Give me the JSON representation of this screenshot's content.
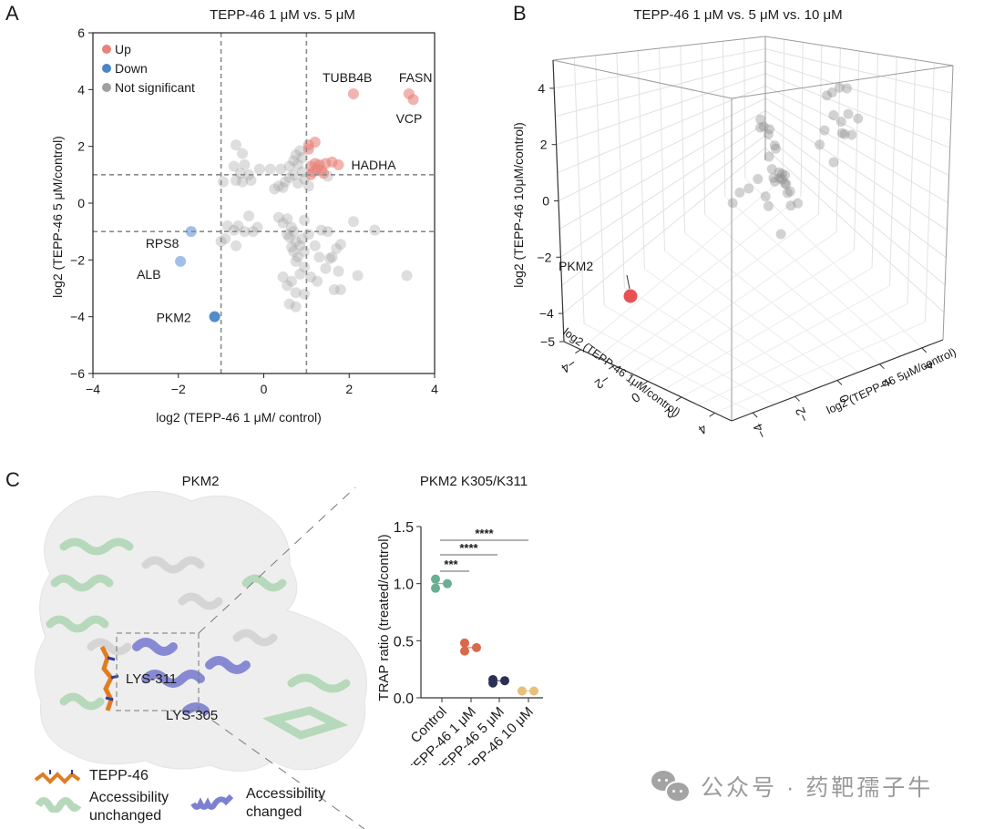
{
  "watermark": {
    "icon": "wechat-icon",
    "text": "公众号 · 药靶孺子牛"
  },
  "colors": {
    "up": "#e8827a",
    "down_strong": "#4a86c8",
    "down_light": "#9dbde6",
    "ns": "#a0a0a0",
    "pkm2_3d": "#e8474b",
    "control": "#6aae93",
    "tepp1": "#d9694c",
    "tepp5": "#2c2f56",
    "tepp10": "#e7c07a",
    "unchanged_helix": "#b6d9bb",
    "changed_helix": "#7c80cf",
    "ligand": "#e07d22"
  },
  "panels": {
    "A": {
      "letter": "A",
      "title": "TEPP-46 1 μM vs. 5 μM"
    },
    "B": {
      "letter": "B",
      "title": "TEPP-46 1 μM vs. 5 μM vs. 10 μM"
    },
    "C": {
      "letter": "C",
      "structure_title": "PKM2",
      "residue_labels": [
        "LYS-311",
        "LYS-305"
      ],
      "legend": [
        {
          "icon": "ligand-stick-icon",
          "label": "TEPP-46"
        },
        {
          "icon": "green-helix-icon",
          "label_lines": [
            "Accessibility",
            "unchanged"
          ]
        },
        {
          "icon": "blue-helix-icon",
          "label_lines": [
            "Accessibility",
            "changed"
          ]
        }
      ]
    }
  },
  "chart_data": [
    {
      "id": "A",
      "type": "scatter",
      "title": "TEPP-46 1 μM vs. 5 μM",
      "xlabel": "log2 (TEPP-46 1 μM/ control)",
      "ylabel": "log2 (TEPP-46 5 μM/control)",
      "xlim": [
        -4,
        4
      ],
      "ylim": [
        -6,
        6
      ],
      "xticks": [
        "-4",
        "-2",
        "0",
        "2",
        "4"
      ],
      "yticks": [
        "-6",
        "-4",
        "-2",
        "0",
        "2",
        "4",
        "6"
      ],
      "threshold_lines": {
        "x": [
          -1,
          1
        ],
        "y": [
          -1,
          1
        ]
      },
      "legend": {
        "position": "top-left",
        "entries": [
          "Up",
          "Down",
          "Not significant"
        ]
      },
      "series": [
        {
          "name": "Up",
          "points": [
            [
              2.1,
              3.85
            ],
            [
              3.4,
              3.85
            ],
            [
              3.5,
              3.65
            ],
            [
              1.05,
              2.05
            ],
            [
              1.2,
              2.15
            ],
            [
              1.05,
              1.9
            ],
            [
              1.1,
              1.3
            ],
            [
              1.2,
              1.4
            ],
            [
              1.3,
              1.35
            ],
            [
              1.15,
              1.1
            ],
            [
              1.35,
              1.15
            ],
            [
              1.25,
              1.2
            ],
            [
              1.45,
              1.4
            ],
            [
              1.6,
              1.45
            ],
            [
              1.75,
              1.35
            ],
            [
              1.4,
              1.05
            ],
            [
              1.1,
              1.0
            ]
          ]
        },
        {
          "name": "Down",
          "points": [
            [
              -1.7,
              -1.0,
              "light"
            ],
            [
              -1.95,
              -2.05,
              "light"
            ],
            [
              -1.15,
              -4.0,
              "strong"
            ]
          ]
        },
        {
          "name": "Not significant",
          "points": [
            [
              -0.65,
              2.05
            ],
            [
              -0.5,
              1.75
            ],
            [
              -0.7,
              1.3
            ],
            [
              -0.45,
              1.35
            ],
            [
              -0.55,
              1.05
            ],
            [
              -0.35,
              1.0
            ],
            [
              -0.65,
              0.8
            ],
            [
              -0.5,
              0.75
            ],
            [
              -0.3,
              0.8
            ],
            [
              -0.95,
              0.75
            ],
            [
              -0.1,
              1.2
            ],
            [
              0.15,
              1.2
            ],
            [
              0.4,
              1.2
            ],
            [
              0.6,
              1.3
            ],
            [
              0.7,
              1.5
            ],
            [
              0.75,
              1.7
            ],
            [
              0.85,
              1.85
            ],
            [
              0.9,
              1.6
            ],
            [
              0.8,
              1.35
            ],
            [
              0.9,
              1.1
            ],
            [
              0.7,
              1.0
            ],
            [
              0.6,
              0.9
            ],
            [
              0.5,
              0.75
            ],
            [
              0.35,
              0.6
            ],
            [
              0.25,
              0.5
            ],
            [
              0.45,
              0.55
            ],
            [
              0.8,
              0.7
            ],
            [
              0.95,
              0.85
            ],
            [
              1.5,
              0.95
            ],
            [
              1.05,
              0.6
            ],
            [
              0.35,
              -0.5
            ],
            [
              0.45,
              -0.7
            ],
            [
              0.55,
              -0.55
            ],
            [
              0.65,
              -0.85
            ],
            [
              0.7,
              -1.0
            ],
            [
              0.6,
              -1.2
            ],
            [
              0.75,
              -1.35
            ],
            [
              0.85,
              -1.5
            ],
            [
              0.7,
              -1.7
            ],
            [
              0.8,
              -1.9
            ],
            [
              0.95,
              -1.7
            ],
            [
              0.9,
              -1.25
            ],
            [
              0.55,
              -1.1
            ],
            [
              1.05,
              -1.1
            ],
            [
              0.95,
              -0.6
            ],
            [
              0.65,
              -1.55
            ],
            [
              0.75,
              -2.05
            ],
            [
              0.95,
              -2.25
            ],
            [
              0.85,
              -2.5
            ],
            [
              0.65,
              -2.75
            ],
            [
              0.45,
              -2.6
            ],
            [
              0.55,
              -2.9
            ],
            [
              0.75,
              -3.15
            ],
            [
              0.6,
              -3.55
            ],
            [
              0.75,
              -3.65
            ],
            [
              0.95,
              -3.2
            ],
            [
              1.1,
              -2.6
            ],
            [
              1.25,
              -2.75
            ],
            [
              1.2,
              -1.5
            ],
            [
              1.3,
              -1.9
            ],
            [
              1.45,
              -2.3
            ],
            [
              1.55,
              -1.95
            ],
            [
              1.6,
              -1.9
            ],
            [
              1.7,
              -1.6
            ],
            [
              1.8,
              -1.45
            ],
            [
              1.75,
              -2.4
            ],
            [
              1.65,
              -3.05
            ],
            [
              1.8,
              -3.05
            ],
            [
              2.2,
              -2.55
            ],
            [
              3.35,
              -2.55
            ],
            [
              2.1,
              -0.65
            ],
            [
              2.6,
              -0.95
            ],
            [
              1.35,
              -0.95
            ],
            [
              1.5,
              -1.0
            ],
            [
              -0.85,
              -0.8
            ],
            [
              -0.6,
              -0.8
            ],
            [
              -0.45,
              -1.0
            ],
            [
              -0.25,
              -1.0
            ],
            [
              -0.35,
              -0.45
            ],
            [
              -0.15,
              -0.85
            ],
            [
              -0.65,
              -1.5
            ],
            [
              -0.9,
              -1.25
            ],
            [
              -1.0,
              -1.35
            ],
            [
              -0.7,
              -0.95
            ]
          ]
        }
      ],
      "annotations": [
        {
          "label": "TUBB4B",
          "point": [
            2.1,
            3.85
          ]
        },
        {
          "label": "FASN",
          "point": [
            3.4,
            3.85
          ]
        },
        {
          "label": "VCP",
          "point": [
            3.5,
            3.65
          ]
        },
        {
          "label": "HADHA",
          "point": [
            1.75,
            1.35
          ]
        },
        {
          "label": "RPS8",
          "point": [
            -1.7,
            -1.0
          ]
        },
        {
          "label": "ALB",
          "point": [
            -1.95,
            -2.05
          ]
        },
        {
          "label": "PKM2",
          "point": [
            -1.15,
            -4.0
          ]
        }
      ]
    },
    {
      "id": "B",
      "type": "scatter",
      "dimensions": 3,
      "title": "TEPP-46 1 μM vs. 5 μM vs. 10 μM",
      "xlabel": "log2 (TEPP-46 1μM/control)",
      "ylabel": "log2 (TEPP-46 5μM/control)",
      "zlabel": "log2 (TEPP-46 10μM/control)",
      "xlim": [
        -5,
        5
      ],
      "ylim": [
        -5,
        5
      ],
      "zlim": [
        -5,
        5
      ],
      "xticks": [
        "-4",
        "-2",
        "0",
        "2",
        "4"
      ],
      "yticks": [
        "-4",
        "-2",
        "0",
        "2",
        "4"
      ],
      "zticks": [
        "-5",
        "-4",
        "-2",
        "0",
        "2",
        "4"
      ],
      "grid": true,
      "highlight": {
        "label": "PKM2",
        "point": [
          -1.2,
          -4.0,
          -3.6
        ]
      },
      "points": [
        [
          0.5,
          0.5,
          0.9
        ],
        [
          0.6,
          0.4,
          0.7
        ],
        [
          0.9,
          0.6,
          0.6
        ],
        [
          1.2,
          0.3,
          0.7
        ],
        [
          0.3,
          0.8,
          0.4
        ],
        [
          0.8,
          0.9,
          -0.2
        ],
        [
          0.6,
          1.1,
          -0.5
        ],
        [
          0.3,
          1.0,
          -0.8
        ],
        [
          0.7,
          0.8,
          -1.0
        ],
        [
          0.9,
          0.7,
          -1.2
        ],
        [
          1.0,
          0.9,
          -1.1
        ],
        [
          1.1,
          1.1,
          -1.3
        ],
        [
          0.8,
          1.2,
          -1.4
        ],
        [
          0.6,
          1.0,
          -1.6
        ],
        [
          1.2,
          1.0,
          -1.5
        ],
        [
          1.3,
          0.8,
          -1.2
        ],
        [
          0.9,
          1.3,
          -1.8
        ],
        [
          0.5,
          0.6,
          -1.9
        ],
        [
          1.4,
          0.6,
          -1.0
        ],
        [
          0.2,
          0.5,
          -1.3
        ],
        [
          0.0,
          0.2,
          -1.5
        ],
        [
          1.5,
          1.0,
          -1.7
        ],
        [
          0.7,
          1.5,
          -2.3
        ],
        [
          1.0,
          1.4,
          -2.6
        ],
        [
          1.3,
          1.5,
          -2.5
        ],
        [
          0.4,
          0.8,
          -2.4
        ],
        [
          -0.3,
          0.0,
          -1.6
        ],
        [
          -0.5,
          -0.2,
          -1.9
        ],
        [
          1.6,
          0.4,
          -2.8
        ],
        [
          1.5,
          3.2,
          0.4
        ],
        [
          1.7,
          3.4,
          0.5
        ],
        [
          1.3,
          3.1,
          0.3
        ],
        [
          1.9,
          3.6,
          0.4
        ],
        [
          1.4,
          3.3,
          -0.5
        ],
        [
          1.6,
          3.5,
          -0.8
        ],
        [
          1.8,
          3.7,
          -0.6
        ],
        [
          1.2,
          3.0,
          -0.9
        ],
        [
          1.5,
          3.6,
          -1.3
        ],
        [
          1.9,
          3.4,
          -1.1
        ],
        [
          1.0,
          2.9,
          -1.4
        ],
        [
          1.7,
          3.9,
          -1.5
        ],
        [
          2.0,
          4.0,
          -0.9
        ],
        [
          1.3,
          3.3,
          -2.2
        ]
      ]
    },
    {
      "id": "C",
      "type": "scatter",
      "title": "PKM2 K305/K311",
      "ylabel": "TRAP ratio (treated/control)",
      "categories": [
        "Control",
        "TEPP-46 1 μM",
        "TEPP-46 5 μM",
        "TEPP-46 10 μM"
      ],
      "ylim": [
        0,
        1.5
      ],
      "yticks": [
        "0.0",
        "0.5",
        "1.0",
        "1.5"
      ],
      "series": [
        {
          "name": "Control",
          "values": [
            1.04,
            0.96,
            1.0
          ],
          "mean": 1.0
        },
        {
          "name": "TEPP-46 1 μM",
          "values": [
            0.48,
            0.41,
            0.44
          ],
          "mean": 0.44
        },
        {
          "name": "TEPP-46 5 μM",
          "values": [
            0.13,
            0.16,
            0.15
          ],
          "mean": 0.15
        },
        {
          "name": "TEPP-46 10 μM",
          "values": [
            0.06,
            0.06,
            0.06
          ],
          "mean": 0.06
        }
      ],
      "significance": [
        {
          "from": "Control",
          "to": "TEPP-46 1 μM",
          "label": "***"
        },
        {
          "from": "Control",
          "to": "TEPP-46 5 μM",
          "label": "****"
        },
        {
          "from": "Control",
          "to": "TEPP-46 10 μM",
          "label": "****"
        }
      ]
    }
  ]
}
